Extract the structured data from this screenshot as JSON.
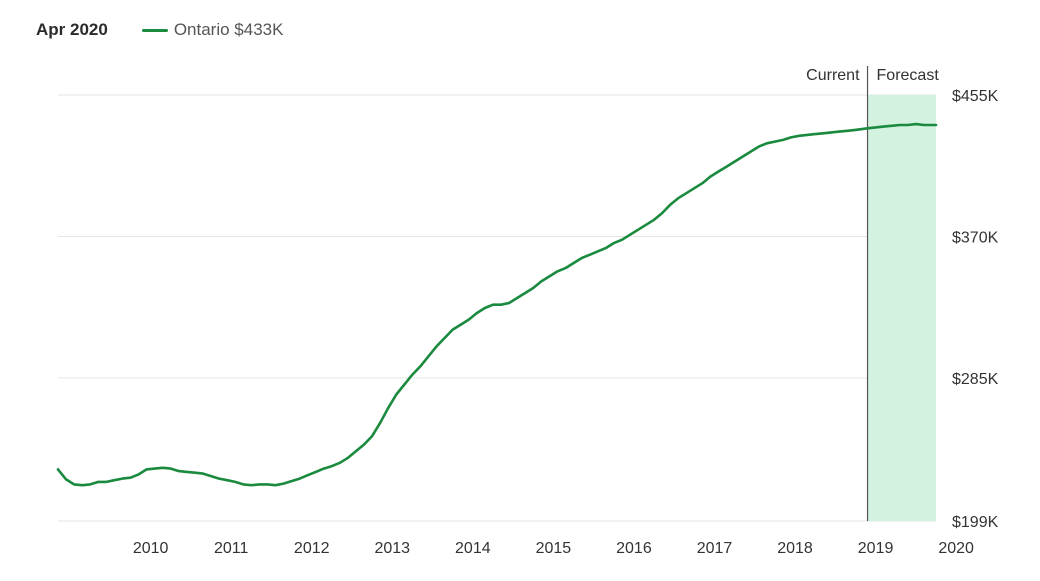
{
  "header": {
    "date": "Apr 2020",
    "legend_label": "Ontario $433K"
  },
  "markers": {
    "current_label": "Current",
    "forecast_label": "Forecast"
  },
  "colors": {
    "line": "#1a8a3e",
    "forecast_band": "#d3f2df",
    "grid": "#e6e6e6",
    "divider": "#555555"
  },
  "chart_data": {
    "type": "line",
    "title": "",
    "xlabel": "",
    "ylabel": "",
    "x_start": 2009.35,
    "x_end": 2020.25,
    "forecast_start": 2019.4,
    "ylim": [
      199,
      455
    ],
    "x_ticks": [
      "2010",
      "2011",
      "2012",
      "2013",
      "2014",
      "2015",
      "2016",
      "2017",
      "2018",
      "2019",
      "2020"
    ],
    "y_ticks": [
      {
        "value": 455,
        "label": "$455K"
      },
      {
        "value": 370,
        "label": "$370K"
      },
      {
        "value": 285,
        "label": "$285K"
      },
      {
        "value": 199,
        "label": "$199K"
      }
    ],
    "series": [
      {
        "name": "Ontario",
        "points": [
          [
            2009.35,
            230
          ],
          [
            2009.45,
            224
          ],
          [
            2009.55,
            221
          ],
          [
            2009.65,
            220.5
          ],
          [
            2009.75,
            221
          ],
          [
            2009.85,
            222.5
          ],
          [
            2009.95,
            222.5
          ],
          [
            2010.05,
            223.5
          ],
          [
            2010.15,
            224.5
          ],
          [
            2010.25,
            225
          ],
          [
            2010.35,
            227
          ],
          [
            2010.45,
            230
          ],
          [
            2010.55,
            230.5
          ],
          [
            2010.65,
            231
          ],
          [
            2010.75,
            230.5
          ],
          [
            2010.85,
            229
          ],
          [
            2010.95,
            228.5
          ],
          [
            2011.05,
            228
          ],
          [
            2011.15,
            227.5
          ],
          [
            2011.25,
            226
          ],
          [
            2011.35,
            224.5
          ],
          [
            2011.45,
            223.5
          ],
          [
            2011.55,
            222.5
          ],
          [
            2011.65,
            221
          ],
          [
            2011.75,
            220.5
          ],
          [
            2011.85,
            221
          ],
          [
            2011.95,
            221
          ],
          [
            2012.05,
            220.5
          ],
          [
            2012.15,
            221.5
          ],
          [
            2012.25,
            223
          ],
          [
            2012.35,
            224.5
          ],
          [
            2012.45,
            226.5
          ],
          [
            2012.55,
            228.5
          ],
          [
            2012.65,
            230.5
          ],
          [
            2012.75,
            232
          ],
          [
            2012.85,
            234
          ],
          [
            2012.95,
            237
          ],
          [
            2013.05,
            241
          ],
          [
            2013.15,
            245
          ],
          [
            2013.25,
            250
          ],
          [
            2013.35,
            258
          ],
          [
            2013.45,
            267
          ],
          [
            2013.55,
            275
          ],
          [
            2013.65,
            281
          ],
          [
            2013.75,
            287
          ],
          [
            2013.85,
            292
          ],
          [
            2013.95,
            298
          ],
          [
            2014.05,
            304
          ],
          [
            2014.15,
            309
          ],
          [
            2014.25,
            314
          ],
          [
            2014.35,
            317
          ],
          [
            2014.45,
            320
          ],
          [
            2014.55,
            324
          ],
          [
            2014.65,
            327
          ],
          [
            2014.75,
            329
          ],
          [
            2014.85,
            329
          ],
          [
            2014.95,
            330
          ],
          [
            2015.05,
            333
          ],
          [
            2015.15,
            336
          ],
          [
            2015.25,
            339
          ],
          [
            2015.35,
            343
          ],
          [
            2015.45,
            346
          ],
          [
            2015.55,
            349
          ],
          [
            2015.65,
            351
          ],
          [
            2015.75,
            354
          ],
          [
            2015.85,
            357
          ],
          [
            2015.95,
            359
          ],
          [
            2016.05,
            361
          ],
          [
            2016.15,
            363
          ],
          [
            2016.25,
            366
          ],
          [
            2016.35,
            368
          ],
          [
            2016.45,
            371
          ],
          [
            2016.55,
            374
          ],
          [
            2016.65,
            377
          ],
          [
            2016.75,
            380
          ],
          [
            2016.85,
            384
          ],
          [
            2016.95,
            389
          ],
          [
            2017.05,
            393
          ],
          [
            2017.15,
            396
          ],
          [
            2017.25,
            399
          ],
          [
            2017.35,
            402
          ],
          [
            2017.45,
            406
          ],
          [
            2017.55,
            409
          ],
          [
            2017.65,
            412
          ],
          [
            2017.75,
            415
          ],
          [
            2017.85,
            418
          ],
          [
            2017.95,
            421
          ],
          [
            2018.05,
            424
          ],
          [
            2018.15,
            426
          ],
          [
            2018.25,
            427
          ],
          [
            2018.35,
            428
          ],
          [
            2018.45,
            429.5
          ],
          [
            2018.55,
            430.5
          ],
          [
            2018.65,
            431
          ],
          [
            2018.75,
            431.5
          ],
          [
            2018.85,
            432
          ],
          [
            2018.95,
            432.5
          ],
          [
            2019.05,
            433
          ],
          [
            2019.15,
            433.5
          ],
          [
            2019.25,
            434
          ],
          [
            2019.4,
            435
          ],
          [
            2019.5,
            435.5
          ],
          [
            2019.6,
            436
          ],
          [
            2019.7,
            436.5
          ],
          [
            2019.8,
            437
          ],
          [
            2019.9,
            437
          ],
          [
            2020.0,
            437.5
          ],
          [
            2020.1,
            437
          ],
          [
            2020.25,
            437
          ]
        ]
      }
    ]
  }
}
